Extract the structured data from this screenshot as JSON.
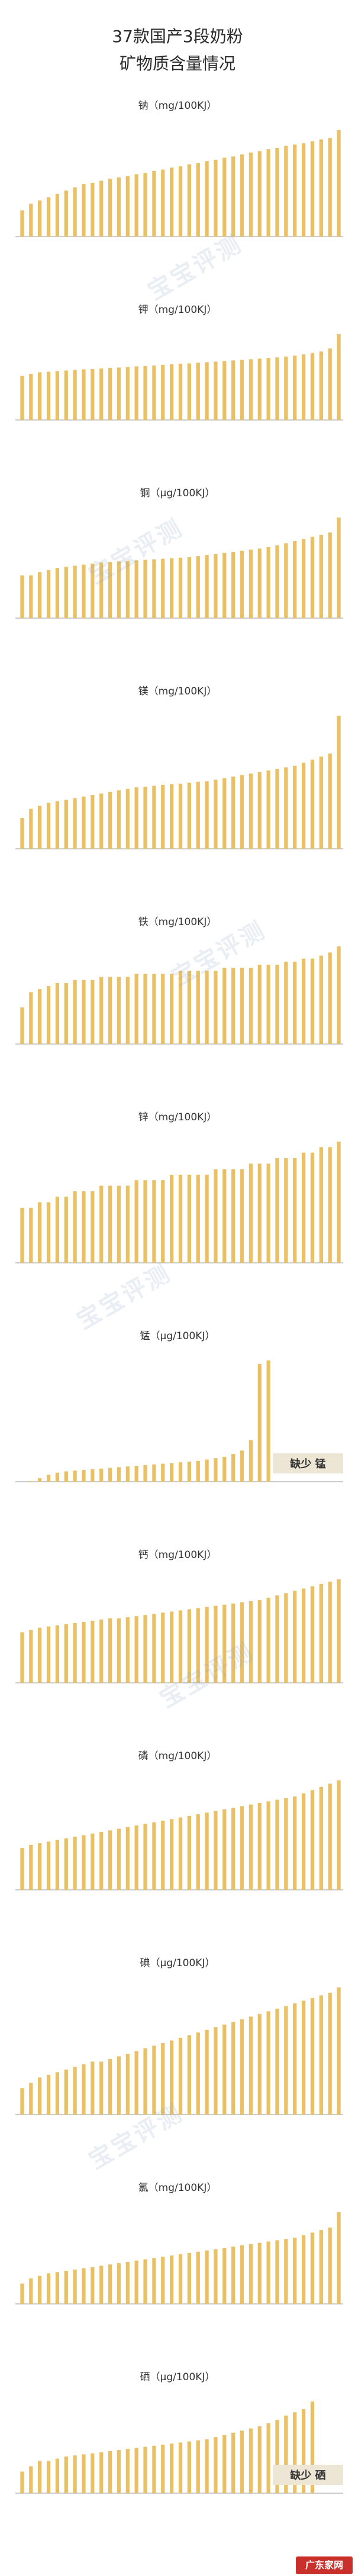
{
  "title_line1": "37款国产3段奶粉",
  "title_line2": "矿物质含量情况",
  "watermark_text": "宝宝评测",
  "site_badge": "广东家网",
  "bar_color": "#e9c064",
  "axis_color": "#999999",
  "chart_data": [
    {
      "type": "bar",
      "title": "钠（mg/100KJ）",
      "missing_label": "",
      "values": [
        0.4,
        0.5,
        0.55,
        0.6,
        0.65,
        0.7,
        0.75,
        0.8,
        0.82,
        0.85,
        0.88,
        0.9,
        0.92,
        0.95,
        0.97,
        1.0,
        1.02,
        1.05,
        1.07,
        1.1,
        1.12,
        1.15,
        1.17,
        1.2,
        1.22,
        1.25,
        1.28,
        1.3,
        1.33,
        1.35,
        1.38,
        1.4,
        1.42,
        1.45,
        1.48,
        1.5,
        1.62
      ],
      "labels": [
        "",
        "",
        "",
        "",
        "",
        "",
        "",
        "",
        "",
        "",
        "",
        "",
        "",
        "",
        "",
        "",
        "",
        "",
        "",
        "",
        "",
        "",
        "",
        "",
        "",
        "",
        "",
        "",
        "",
        "",
        "",
        "",
        "",
        "",
        "",
        "",
        ""
      ]
    },
    {
      "type": "bar",
      "title": "钾（mg/100KJ）",
      "missing_label": "",
      "values": [
        14.8,
        15.5,
        16.0,
        16.2,
        16.4,
        16.6,
        16.8,
        17.0,
        17.1,
        17.3,
        17.5,
        17.6,
        17.8,
        18.0,
        18.1,
        18.3,
        18.5,
        18.7,
        18.9,
        19.0,
        19.2,
        19.4,
        19.6,
        19.8,
        20.0,
        20.2,
        20.4,
        20.6,
        20.8,
        21.0,
        21.3,
        21.6,
        22.0,
        22.5,
        23.0,
        24.0,
        28.8
      ],
      "labels": [
        "",
        "",
        "",
        "",
        "",
        "",
        "",
        "",
        "",
        "",
        "",
        "",
        "",
        "",
        "",
        "",
        "",
        "",
        "",
        "",
        "",
        "",
        "",
        "",
        "",
        "",
        "",
        "",
        "",
        "",
        "",
        "",
        "",
        "",
        "",
        "",
        ""
      ]
    },
    {
      "type": "bar",
      "title": "铜（μg/100KJ）",
      "missing_label": "",
      "values": [
        8.0,
        8.0,
        8.6,
        9.0,
        9.4,
        9.6,
        9.8,
        10.0,
        10.2,
        10.4,
        10.5,
        10.6,
        10.7,
        10.8,
        10.9,
        11.0,
        11.1,
        11.2,
        11.3,
        11.4,
        11.6,
        11.8,
        12.0,
        12.2,
        12.4,
        12.6,
        12.8,
        13.0,
        13.3,
        13.6,
        14.0,
        14.4,
        14.8,
        15.2,
        15.6,
        16.0,
        18.8
      ],
      "labels": [
        "",
        "",
        "",
        "",
        "",
        "",
        "",
        "",
        "",
        "",
        "",
        "",
        "",
        "",
        "",
        "",
        "",
        "",
        "",
        "",
        "",
        "",
        "",
        "",
        "",
        "",
        "",
        "",
        "",
        "",
        "",
        "",
        "",
        "",
        "",
        "",
        ""
      ]
    },
    {
      "type": "bar",
      "title": "镁（mg/100KJ）",
      "missing_label": "",
      "values": [
        1.0,
        1.3,
        1.4,
        1.5,
        1.55,
        1.6,
        1.65,
        1.7,
        1.75,
        1.8,
        1.85,
        1.9,
        1.95,
        2.0,
        2.02,
        2.05,
        2.08,
        2.1,
        2.12,
        2.15,
        2.18,
        2.2,
        2.25,
        2.3,
        2.35,
        2.4,
        2.45,
        2.5,
        2.55,
        2.6,
        2.65,
        2.7,
        2.8,
        2.9,
        3.0,
        3.1,
        4.33
      ],
      "labels": [
        "",
        "",
        "",
        "",
        "",
        "",
        "",
        "",
        "",
        "",
        "",
        "",
        "",
        "",
        "",
        "",
        "",
        "",
        "",
        "",
        "",
        "",
        "",
        "",
        "",
        "",
        "",
        "",
        "",
        "",
        "",
        "",
        "",
        "",
        "",
        "",
        ""
      ]
    },
    {
      "type": "bar",
      "title": "铁（mg/100KJ）",
      "missing_label": "",
      "values": [
        0.12,
        0.17,
        0.18,
        0.19,
        0.2,
        0.2,
        0.21,
        0.21,
        0.21,
        0.22,
        0.22,
        0.22,
        0.22,
        0.23,
        0.23,
        0.23,
        0.23,
        0.23,
        0.24,
        0.24,
        0.24,
        0.24,
        0.24,
        0.25,
        0.25,
        0.25,
        0.25,
        0.26,
        0.26,
        0.26,
        0.27,
        0.27,
        0.28,
        0.28,
        0.29,
        0.3,
        0.32
      ],
      "labels": [
        "",
        "",
        "",
        "",
        "",
        "",
        "",
        "",
        "",
        "",
        "",
        "",
        "",
        "",
        "",
        "",
        "",
        "",
        "",
        "",
        "",
        "",
        "",
        "",
        "",
        "",
        "",
        "",
        "",
        "",
        "",
        "",
        "",
        "",
        "",
        "",
        ""
      ]
    },
    {
      "type": "bar",
      "title": "锌（mg/100KJ）",
      "missing_label": "",
      "values": [
        0.1,
        0.1,
        0.11,
        0.11,
        0.12,
        0.12,
        0.13,
        0.13,
        0.13,
        0.14,
        0.14,
        0.14,
        0.14,
        0.15,
        0.15,
        0.15,
        0.15,
        0.16,
        0.16,
        0.16,
        0.16,
        0.16,
        0.17,
        0.17,
        0.17,
        0.17,
        0.18,
        0.18,
        0.18,
        0.19,
        0.19,
        0.19,
        0.2,
        0.2,
        0.21,
        0.21,
        0.22
      ],
      "labels": [
        "",
        "",
        "",
        "",
        "",
        "",
        "",
        "",
        "",
        "",
        "",
        "",
        "",
        "",
        "",
        "",
        "",
        "",
        "",
        "",
        "",
        "",
        "",
        "",
        "",
        "",
        "",
        "",
        "",
        "",
        "",
        "",
        "",
        "",
        "",
        "",
        ""
      ]
    },
    {
      "type": "bar",
      "title": "锰（μg/100KJ）",
      "missing_label": "缺少 锰",
      "values": [
        0.0,
        0.1,
        0.5,
        1.0,
        1.3,
        1.5,
        1.6,
        1.7,
        1.8,
        1.9,
        2.0,
        2.1,
        2.2,
        2.3,
        2.4,
        2.5,
        2.6,
        2.7,
        2.8,
        2.9,
        3.0,
        3.2,
        3.4,
        3.6,
        4.0,
        4.5,
        6.0,
        17.0,
        17.5,
        0,
        0,
        0,
        0,
        0,
        0,
        0,
        0
      ],
      "labels": [
        "",
        "",
        "",
        "",
        "",
        "",
        "",
        "",
        "",
        "",
        "",
        "",
        "",
        "",
        "",
        "",
        "",
        "",
        "",
        "",
        "",
        "",
        "",
        "",
        "",
        "",
        "",
        "",
        "",
        "",
        "",
        "",
        "",
        "",
        "",
        "",
        ""
      ]
    },
    {
      "type": "bar",
      "title": "钙（mg/100KJ）",
      "missing_label": "",
      "values": [
        22,
        23,
        24,
        24.5,
        25,
        25.5,
        26,
        26.5,
        27,
        27.5,
        28,
        28,
        28.5,
        29,
        29.5,
        30,
        30.5,
        31,
        31.5,
        32,
        32.5,
        33,
        33.5,
        34,
        34.5,
        35,
        35.5,
        36,
        37,
        38,
        39,
        40,
        41,
        42,
        43,
        44,
        45
      ],
      "labels": [
        "",
        "",
        "",
        "",
        "",
        "",
        "",
        "",
        "",
        "",
        "",
        "",
        "",
        "",
        "",
        "",
        "",
        "",
        "",
        "",
        "",
        "",
        "",
        "",
        "",
        "",
        "",
        "",
        "",
        "",
        "",
        "",
        "",
        "",
        "",
        "",
        ""
      ]
    },
    {
      "type": "bar",
      "title": "磷（mg/100KJ）",
      "missing_label": "",
      "values": [
        13,
        14,
        14.5,
        15,
        15.5,
        16,
        16.5,
        17,
        17.5,
        18,
        18.5,
        19,
        19.5,
        20,
        20.5,
        21,
        21.5,
        22,
        22.5,
        23,
        23.5,
        24,
        24.5,
        25,
        25.5,
        26,
        26.5,
        27,
        27.5,
        28,
        28.5,
        29,
        30,
        31,
        32,
        33,
        34
      ],
      "labels": [
        "",
        "",
        "",
        "",
        "",
        "",
        "",
        "",
        "",
        "",
        "",
        "",
        "",
        "",
        "",
        "",
        "",
        "",
        "",
        "",
        "",
        "",
        "",
        "",
        "",
        "",
        "",
        "",
        "",
        "",
        "",
        "",
        "",
        "",
        "",
        "",
        ""
      ]
    },
    {
      "type": "bar",
      "title": "碘（μg/100KJ）",
      "missing_label": "",
      "values": [
        1.0,
        1.2,
        1.4,
        1.5,
        1.6,
        1.7,
        1.8,
        1.9,
        2.0,
        2.0,
        2.1,
        2.2,
        2.3,
        2.4,
        2.5,
        2.6,
        2.7,
        2.8,
        2.9,
        3.0,
        3.1,
        3.2,
        3.3,
        3.4,
        3.5,
        3.6,
        3.7,
        3.8,
        3.9,
        4.0,
        4.1,
        4.2,
        4.3,
        4.4,
        4.5,
        4.6,
        4.8
      ],
      "labels": [
        "",
        "",
        "",
        "",
        "",
        "",
        "",
        "",
        "",
        "",
        "",
        "",
        "",
        "",
        "",
        "",
        "",
        "",
        "",
        "",
        "",
        "",
        "",
        "",
        "",
        "",
        "",
        "",
        "",
        "",
        "",
        "",
        "",
        "",
        "",
        "",
        ""
      ]
    },
    {
      "type": "bar",
      "title": "氯（mg/100KJ）",
      "missing_label": "",
      "values": [
        8,
        10,
        11,
        12,
        12.5,
        13,
        13.5,
        14,
        14.5,
        15,
        15.5,
        16,
        16.5,
        17,
        17.5,
        18,
        18.5,
        19,
        19.5,
        20,
        20.5,
        21,
        21.5,
        22,
        22.5,
        23,
        23.5,
        24,
        24.5,
        25,
        25.5,
        26,
        27,
        28,
        29,
        30,
        36
      ],
      "labels": [
        "",
        "",
        "",
        "",
        "",
        "",
        "",
        "",
        "",
        "",
        "",
        "",
        "",
        "",
        "",
        "",
        "",
        "",
        "",
        "",
        "",
        "",
        "",
        "",
        "",
        "",
        "",
        "",
        "",
        "",
        "",
        "",
        "",
        "",
        "",
        "",
        ""
      ]
    },
    {
      "type": "bar",
      "title": "硒（μg/100KJ）",
      "missing_label": "缺少 硒",
      "values": [
        0.2,
        0.25,
        0.3,
        0.3,
        0.32,
        0.34,
        0.35,
        0.36,
        0.37,
        0.38,
        0.39,
        0.4,
        0.41,
        0.42,
        0.43,
        0.44,
        0.45,
        0.46,
        0.47,
        0.48,
        0.49,
        0.5,
        0.52,
        0.54,
        0.56,
        0.58,
        0.6,
        0.62,
        0.65,
        0.68,
        0.72,
        0.75,
        0.78,
        0.85,
        0,
        0,
        0
      ],
      "labels": [
        "",
        "",
        "",
        "",
        "",
        "",
        "",
        "",
        "",
        "",
        "",
        "",
        "",
        "",
        "",
        "",
        "",
        "",
        "",
        "",
        "",
        "",
        "",
        "",
        "",
        "",
        "",
        "",
        "",
        "",
        "",
        "",
        "",
        "",
        "",
        "",
        ""
      ]
    }
  ]
}
